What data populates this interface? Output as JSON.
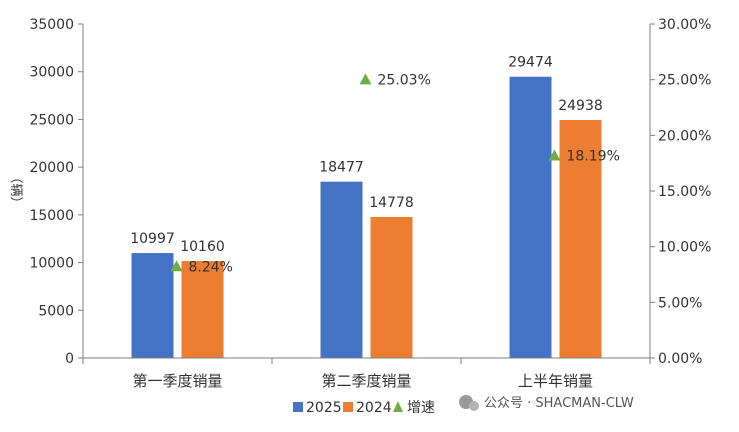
{
  "chart_data": {
    "type": "bar",
    "categories": [
      "第一季度销量",
      "第二季度销量",
      "上半年销量"
    ],
    "series": [
      {
        "name": "2025",
        "values": [
          10997,
          18477,
          29474
        ],
        "color": "#4472C4"
      },
      {
        "name": "2024",
        "values": [
          10160,
          14778,
          24938
        ],
        "color": "#ED7D31"
      }
    ],
    "growth": {
      "name": "增速",
      "values": [
        8.24,
        25.03,
        18.19
      ],
      "labels": [
        "8.24%",
        "25.03%",
        "18.19%"
      ],
      "color": "#70AD47"
    },
    "ylabel": "（辆）",
    "ylim": [
      0,
      35000
    ],
    "yticks": [
      "0",
      "5000",
      "10000",
      "15000",
      "20000",
      "25000",
      "30000",
      "35000"
    ],
    "y2lim": [
      0,
      30
    ],
    "y2ticks": [
      "0.00%",
      "5.00%",
      "10.00%",
      "15.00%",
      "20.00%",
      "25.00%",
      "30.00%"
    ],
    "legend": "bottom",
    "grid": false
  },
  "watermark": {
    "text": "公众号 · SHACMAN-CLW"
  }
}
